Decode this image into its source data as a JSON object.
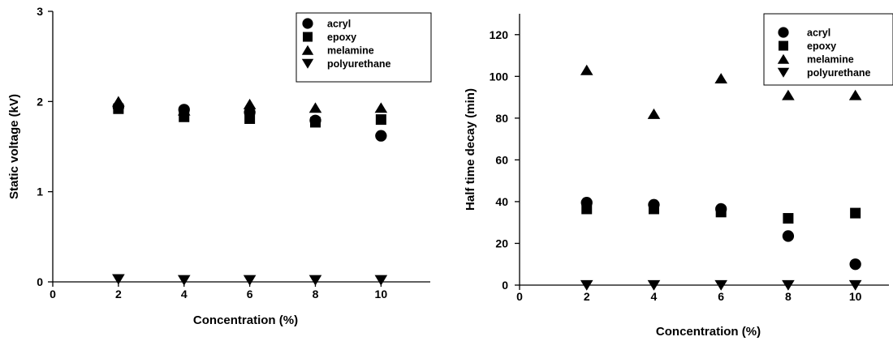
{
  "chart_data": [
    {
      "type": "scatter",
      "title": "",
      "xlabel": "Concentration (%)",
      "ylabel": "Static voltage (kV)",
      "xlim": [
        0,
        11.5
      ],
      "ylim": [
        0,
        3
      ],
      "xticks": [
        "0",
        "2",
        "4",
        "6",
        "8",
        "10"
      ],
      "yticks": [
        "0",
        "1",
        "2",
        "3"
      ],
      "grid": false,
      "legend_position": "top-right",
      "x": [
        2,
        4,
        6,
        8,
        10
      ],
      "series": [
        {
          "name": "acryl",
          "marker": "circle",
          "values": [
            1.94,
            1.91,
            1.88,
            1.79,
            1.62
          ]
        },
        {
          "name": "epoxy",
          "marker": "square",
          "values": [
            1.92,
            1.83,
            1.81,
            1.77,
            1.8
          ]
        },
        {
          "name": "melamine",
          "marker": "triangle-up",
          "values": [
            2.0,
            1.9,
            1.97,
            1.93,
            1.93
          ]
        },
        {
          "name": "polyurethane",
          "marker": "triangle-down",
          "values": [
            0.03,
            0.02,
            0.02,
            0.02,
            0.02
          ]
        }
      ]
    },
    {
      "type": "scatter",
      "title": "",
      "xlabel": "Concentration (%)",
      "ylabel": "Half time decay (min)",
      "xlim": [
        0,
        11
      ],
      "ylim": [
        0,
        130
      ],
      "xticks": [
        "0",
        "2",
        "4",
        "6",
        "8",
        "10"
      ],
      "yticks": [
        "0",
        "20",
        "40",
        "60",
        "80",
        "100",
        "120"
      ],
      "grid": false,
      "legend_position": "top-right",
      "x": [
        2,
        4,
        6,
        8,
        10
      ],
      "series": [
        {
          "name": "acryl",
          "marker": "circle",
          "values": [
            39.5,
            38.5,
            36.5,
            23.5,
            10.0
          ]
        },
        {
          "name": "epoxy",
          "marker": "square",
          "values": [
            36.5,
            36.5,
            35.0,
            32.0,
            34.5
          ]
        },
        {
          "name": "melamine",
          "marker": "triangle-up",
          "values": [
            103,
            82,
            99,
            91,
            91
          ]
        },
        {
          "name": "polyurethane",
          "marker": "triangle-down",
          "values": [
            0,
            0,
            0,
            0,
            0
          ]
        }
      ]
    }
  ]
}
